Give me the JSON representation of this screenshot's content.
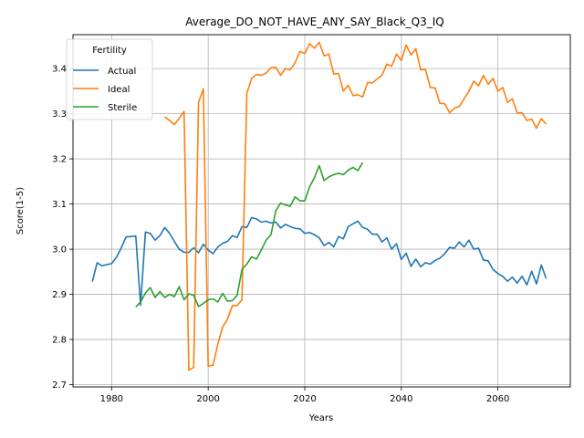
{
  "chart_data": {
    "type": "line",
    "title": "Average_DO_NOT_HAVE_ANY_SAY_Black_Q3_IQ",
    "xlabel": "Years",
    "ylabel": "Score(1-5)",
    "xlim": [
      1972,
      2075
    ],
    "ylim": [
      2.695,
      3.475
    ],
    "xticks": [
      1980,
      2000,
      2020,
      2040,
      2060
    ],
    "yticks": [
      2.7,
      2.8,
      2.9,
      3.0,
      3.1,
      3.2,
      3.3,
      3.4
    ],
    "grid": true,
    "legend": {
      "title": "Fertility",
      "position": "top-left"
    },
    "series": [
      {
        "name": "Actual",
        "color": "#1f77b4",
        "x": [
          1976,
          1977,
          1978,
          1979,
          1980,
          1981,
          1982,
          1983,
          1984,
          1985,
          1986,
          1987,
          1988,
          1989,
          1990,
          1991,
          1992,
          1993,
          1994,
          1995,
          1996,
          1997,
          1998,
          1999,
          2000,
          2001,
          2002,
          2003,
          2004,
          2005,
          2006,
          2007,
          2008,
          2009,
          2010,
          2011,
          2012,
          2013,
          2014,
          2015,
          2016,
          2017,
          2018,
          2019,
          2020,
          2021,
          2022,
          2023,
          2024,
          2025,
          2026,
          2027,
          2028,
          2029,
          2030,
          2031,
          2032,
          2033,
          2034,
          2035,
          2036,
          2037,
          2038,
          2039,
          2040,
          2041,
          2042,
          2043,
          2044,
          2045,
          2046,
          2047,
          2048,
          2049,
          2050,
          2051,
          2052,
          2053,
          2054,
          2055,
          2056,
          2057,
          2058,
          2059,
          2060,
          2061,
          2062,
          2063,
          2064,
          2065,
          2066,
          2067,
          2068,
          2069,
          2070
        ],
        "values": [
          2.928,
          2.97,
          2.963,
          2.966,
          2.968,
          2.982,
          3.003,
          3.027,
          3.028,
          3.029,
          2.876,
          3.038,
          3.035,
          3.02,
          3.03,
          3.048,
          3.035,
          3.017,
          3.0,
          2.993,
          2.993,
          3.003,
          2.992,
          3.011,
          2.998,
          2.99,
          3.005,
          3.013,
          3.017,
          3.03,
          3.026,
          3.05,
          3.048,
          3.07,
          3.067,
          3.06,
          3.062,
          3.058,
          3.06,
          3.047,
          3.055,
          3.05,
          3.046,
          3.045,
          3.035,
          3.037,
          3.032,
          3.025,
          3.008,
          3.015,
          3.005,
          3.028,
          3.023,
          3.05,
          3.056,
          3.062,
          3.048,
          3.044,
          3.033,
          3.033,
          3.016,
          3.025,
          3.0,
          3.012,
          2.977,
          2.991,
          2.962,
          2.978,
          2.961,
          2.97,
          2.967,
          2.975,
          2.98,
          2.99,
          3.004,
          3.002,
          3.016,
          3.005,
          3.02,
          3.0,
          3.002,
          2.976,
          2.974,
          2.955,
          2.946,
          2.94,
          2.929,
          2.938,
          2.925,
          2.94,
          2.921,
          2.951,
          2.923,
          2.965,
          2.935
        ]
      },
      {
        "name": "Ideal",
        "color": "#ff7f0e",
        "x": [
          1991,
          1992,
          1993,
          1994,
          1995,
          1996,
          1997,
          1998,
          1999,
          2000,
          2001,
          2002,
          2003,
          2004,
          2005,
          2006,
          2007,
          2008,
          2009,
          2010,
          2011,
          2012,
          2013,
          2014,
          2015,
          2016,
          2017,
          2018,
          2019,
          2020,
          2021,
          2022,
          2023,
          2024,
          2025,
          2026,
          2027,
          2028,
          2029,
          2030,
          2031,
          2032,
          2033,
          2034,
          2035,
          2036,
          2037,
          2038,
          2039,
          2040,
          2041,
          2042,
          2043,
          2044,
          2045,
          2046,
          2047,
          2048,
          2049,
          2050,
          2051,
          2052,
          2053,
          2054,
          2055,
          2056,
          2057,
          2058,
          2059,
          2060,
          2061,
          2062,
          2063,
          2064,
          2065,
          2066,
          2067,
          2068,
          2069,
          2070
        ],
        "values": [
          3.293,
          3.285,
          3.276,
          3.29,
          3.305,
          2.732,
          2.738,
          3.325,
          3.355,
          2.741,
          2.743,
          2.79,
          2.828,
          2.845,
          2.875,
          2.875,
          2.888,
          3.345,
          3.378,
          3.387,
          3.385,
          3.39,
          3.402,
          3.403,
          3.385,
          3.4,
          3.397,
          3.413,
          3.438,
          3.433,
          3.455,
          3.445,
          3.458,
          3.428,
          3.432,
          3.388,
          3.389,
          3.35,
          3.363,
          3.34,
          3.342,
          3.337,
          3.369,
          3.368,
          3.377,
          3.385,
          3.41,
          3.405,
          3.432,
          3.418,
          3.452,
          3.43,
          3.444,
          3.397,
          3.398,
          3.358,
          3.357,
          3.323,
          3.322,
          3.302,
          3.312,
          3.316,
          3.333,
          3.35,
          3.372,
          3.362,
          3.385,
          3.365,
          3.378,
          3.35,
          3.358,
          3.325,
          3.333,
          3.302,
          3.302,
          3.285,
          3.288,
          3.268,
          3.289,
          3.277
        ]
      },
      {
        "name": "Sterile",
        "color": "#2ca02c",
        "x": [
          1985,
          1986,
          1987,
          1988,
          1989,
          1990,
          1991,
          1992,
          1993,
          1994,
          1995,
          1996,
          1997,
          1998,
          1999,
          2000,
          2001,
          2002,
          2003,
          2004,
          2005,
          2006,
          2007,
          2008,
          2009,
          2010,
          2011,
          2012,
          2013,
          2014,
          2015,
          2016,
          2017,
          2018,
          2019,
          2020,
          2021,
          2022,
          2023,
          2024,
          2025,
          2026,
          2027,
          2028,
          2029,
          2030,
          2031,
          2032
        ],
        "values": [
          2.872,
          2.883,
          2.903,
          2.915,
          2.893,
          2.906,
          2.893,
          2.9,
          2.895,
          2.917,
          2.888,
          2.901,
          2.898,
          2.873,
          2.88,
          2.888,
          2.89,
          2.883,
          2.902,
          2.885,
          2.886,
          2.898,
          2.955,
          2.967,
          2.983,
          2.978,
          2.998,
          3.02,
          3.032,
          3.085,
          3.102,
          3.098,
          3.095,
          3.116,
          3.107,
          3.107,
          3.138,
          3.158,
          3.185,
          3.152,
          3.16,
          3.165,
          3.168,
          3.165,
          3.175,
          3.181,
          3.174,
          3.192
        ]
      }
    ]
  }
}
